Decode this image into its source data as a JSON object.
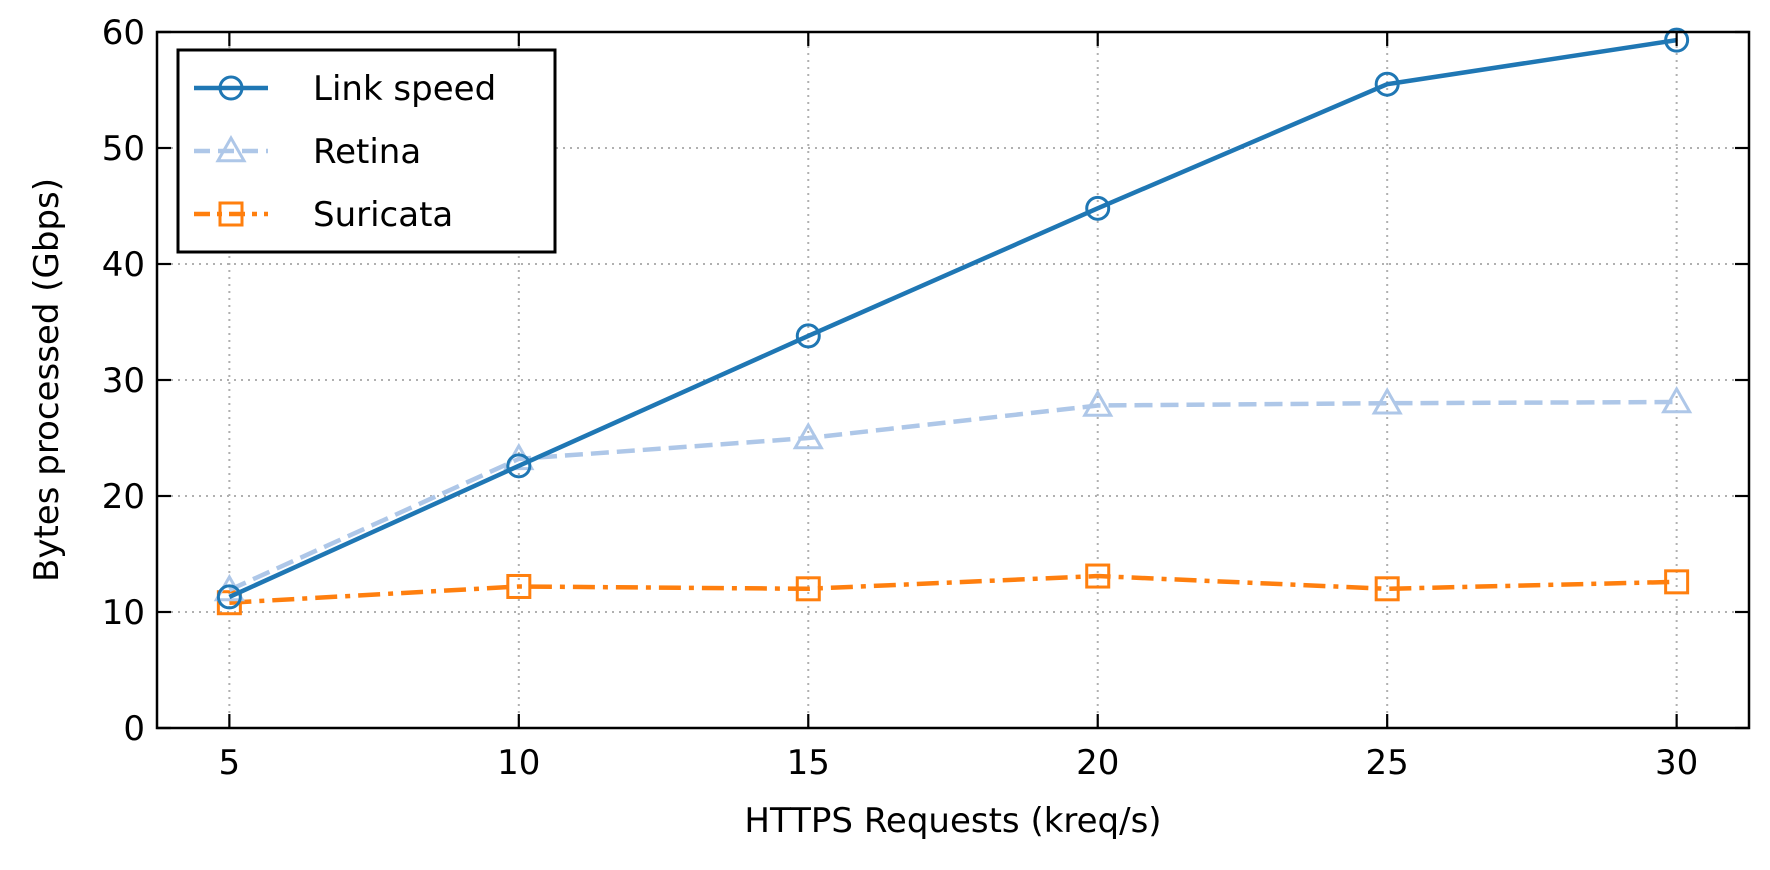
{
  "chart_data": {
    "type": "line",
    "xlabel": "HTTPS Requests (kreq/s)",
    "ylabel": "Bytes processed (Gbps)",
    "x": [
      5,
      10,
      15,
      20,
      25,
      30
    ],
    "xlim": [
      3.75,
      31.25
    ],
    "ylim": [
      0,
      60
    ],
    "xticks": [
      "5",
      "10",
      "15",
      "20",
      "25",
      "30"
    ],
    "yticks": [
      "0",
      "10",
      "20",
      "30",
      "40",
      "50",
      "60"
    ],
    "grid": true,
    "legend_position": "top-left",
    "series": [
      {
        "name": "Link speed",
        "values": [
          11.3,
          22.6,
          33.8,
          44.8,
          55.5,
          59.3
        ],
        "color": "#1f77b4",
        "linestyle": "solid",
        "marker": "circle"
      },
      {
        "name": "Retina",
        "values": [
          11.9,
          23.2,
          25.0,
          27.8,
          28.0,
          28.1
        ],
        "color": "#aec7e8",
        "linestyle": "dashed",
        "marker": "triangle"
      },
      {
        "name": "Suricata",
        "values": [
          10.8,
          12.2,
          12.0,
          13.1,
          12.0,
          12.6
        ],
        "color": "#ff7f0e",
        "linestyle": "dashdot",
        "marker": "square"
      }
    ]
  }
}
